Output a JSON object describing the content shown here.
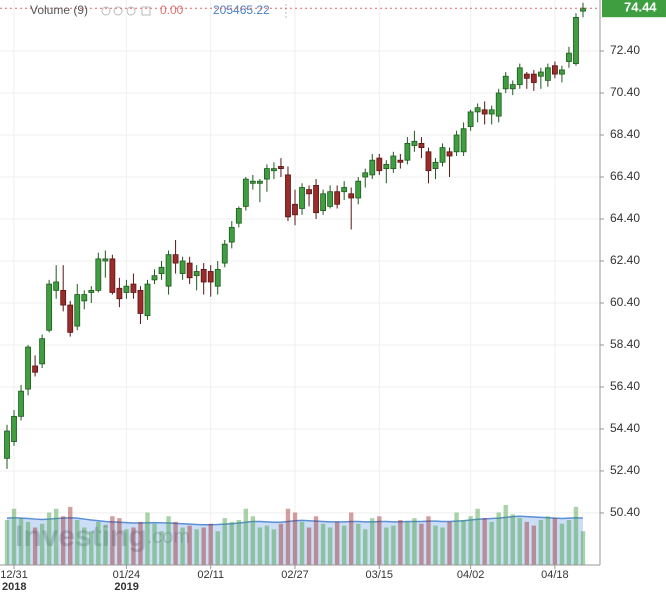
{
  "chart_data": {
    "type": "candlestick",
    "categories": [
      null,
      "12/31",
      null,
      null,
      null,
      null,
      null,
      null,
      null,
      null,
      null,
      null,
      null,
      null,
      null,
      null,
      null,
      "01/24",
      null,
      null,
      null,
      null,
      null,
      null,
      null,
      null,
      null,
      null,
      null,
      "02/11",
      null,
      null,
      null,
      null,
      null,
      null,
      null,
      null,
      null,
      null,
      null,
      "02/27",
      null,
      null,
      null,
      null,
      null,
      null,
      null,
      null,
      null,
      null,
      null,
      "03/15",
      null,
      null,
      null,
      null,
      null,
      null,
      null,
      null,
      null,
      null,
      null,
      null,
      "04/02",
      null,
      null,
      null,
      null,
      null,
      null,
      null,
      null,
      null,
      null,
      null,
      "04/18",
      null,
      null,
      null,
      null
    ],
    "category_years": [
      null,
      "2018",
      null,
      null,
      null,
      null,
      null,
      null,
      null,
      null,
      null,
      null,
      null,
      null,
      null,
      null,
      null,
      "2019",
      null,
      null,
      null,
      null,
      null,
      null,
      null,
      null,
      null,
      null,
      null,
      null,
      null,
      null,
      null,
      null,
      null,
      null,
      null,
      null,
      null,
      null,
      null,
      null,
      null,
      null,
      null,
      null,
      null,
      null,
      null,
      null,
      null,
      null,
      null,
      null,
      null,
      null,
      null,
      null,
      null,
      null,
      null,
      null,
      null,
      null,
      null,
      null,
      null,
      null,
      null,
      null,
      null,
      null,
      null,
      null,
      null,
      null,
      null,
      null,
      null,
      null,
      null,
      null,
      null
    ],
    "open": [
      53.0,
      53.8,
      55.0,
      56.3,
      57.4,
      57.5,
      59.1,
      61.0,
      61.0,
      60.3,
      59.3,
      60.5,
      60.9,
      61.0,
      62.4,
      62.5,
      61.1,
      60.9,
      61.3,
      61.0,
      59.8,
      61.5,
      61.8,
      61.2,
      62.7,
      61.8,
      62.3,
      61.7,
      62.0,
      61.9,
      61.2,
      62.3,
      63.3,
      64.2,
      65.0,
      66.1,
      66.1,
      66.3,
      66.7,
      66.9,
      66.5,
      65.1,
      64.9,
      65.8,
      66.0,
      64.8,
      65.0,
      65.7,
      65.7,
      65.6,
      65.4,
      66.4,
      66.5,
      67.3,
      66.8,
      66.8,
      67.2,
      67.2,
      67.9,
      68.0,
      67.6,
      66.8,
      67.1,
      67.6,
      67.6,
      67.6,
      68.8,
      69.5,
      69.6,
      69.4,
      69.3,
      70.6,
      70.6,
      70.8,
      71.3,
      71.3,
      71.2,
      71.0,
      71.7,
      71.3,
      71.9,
      71.8,
      74.3
    ],
    "high": [
      54.6,
      55.3,
      56.5,
      58.4,
      57.9,
      58.9,
      61.5,
      62.2,
      62.2,
      60.5,
      61.3,
      61.0,
      61.2,
      62.8,
      62.9,
      62.7,
      61.6,
      61.5,
      61.8,
      61.2,
      61.5,
      62.0,
      62.4,
      62.9,
      63.4,
      62.6,
      62.6,
      62.2,
      62.3,
      62.2,
      62.4,
      63.4,
      64.3,
      65.0,
      66.4,
      66.5,
      66.3,
      67.0,
      67.1,
      67.3,
      66.9,
      65.8,
      66.1,
      66.0,
      66.3,
      65.8,
      66.0,
      66.0,
      66.2,
      65.9,
      66.4,
      66.8,
      67.5,
      67.5,
      67.2,
      67.6,
      67.5,
      68.3,
      68.6,
      68.3,
      67.8,
      67.3,
      68.0,
      67.8,
      68.6,
      69.0,
      69.6,
      69.9,
      70.0,
      69.8,
      70.6,
      71.4,
      71.0,
      71.8,
      71.4,
      71.5,
      71.6,
      71.8,
      71.9,
      71.7,
      72.6,
      74.2,
      74.7
    ],
    "low": [
      52.5,
      53.6,
      54.8,
      56.0,
      56.9,
      57.3,
      59.0,
      60.6,
      60.0,
      58.8,
      59.1,
      60.1,
      60.4,
      60.9,
      61.6,
      60.8,
      60.2,
      60.6,
      60.6,
      59.4,
      59.6,
      61.3,
      61.5,
      60.8,
      61.8,
      61.5,
      61.3,
      61.0,
      60.8,
      60.7,
      60.8,
      62.1,
      63.0,
      64.0,
      64.8,
      65.8,
      65.2,
      65.7,
      66.3,
      66.4,
      64.3,
      64.1,
      64.6,
      65.0,
      64.4,
      64.6,
      64.9,
      64.9,
      65.3,
      63.9,
      65.1,
      65.9,
      66.3,
      66.5,
      66.1,
      66.6,
      66.8,
      67.0,
      67.6,
      67.3,
      66.1,
      66.3,
      66.9,
      66.4,
      67.4,
      67.4,
      68.6,
      69.0,
      68.9,
      68.9,
      69.0,
      70.4,
      70.3,
      70.6,
      70.6,
      70.5,
      70.6,
      70.7,
      71.1,
      70.9,
      71.6,
      71.7,
      74.0
    ],
    "close": [
      54.3,
      55.0,
      56.2,
      58.3,
      57.1,
      58.7,
      61.3,
      61.4,
      60.3,
      59.0,
      60.8,
      60.8,
      61.0,
      62.5,
      62.5,
      60.9,
      60.6,
      61.2,
      60.9,
      59.9,
      61.3,
      61.7,
      62.1,
      62.7,
      62.3,
      62.4,
      61.6,
      61.9,
      61.4,
      61.4,
      62.0,
      63.2,
      64.0,
      64.9,
      66.3,
      66.2,
      66.2,
      66.8,
      66.8,
      66.8,
      64.5,
      64.6,
      65.9,
      65.6,
      64.7,
      65.6,
      65.7,
      65.1,
      65.9,
      65.4,
      66.2,
      66.6,
      67.2,
      66.7,
      67.0,
      67.4,
      67.1,
      68.0,
      68.1,
      67.8,
      66.7,
      67.1,
      67.8,
      67.4,
      68.4,
      68.7,
      69.5,
      69.7,
      69.4,
      69.6,
      70.4,
      71.2,
      70.8,
      71.6,
      71.1,
      70.9,
      71.4,
      71.6,
      71.3,
      71.5,
      72.3,
      74.0,
      74.44
    ],
    "volume": [
      240000,
      300000,
      250000,
      230000,
      200000,
      220000,
      280000,
      300000,
      260000,
      310000,
      240000,
      200000,
      180000,
      230000,
      210000,
      260000,
      250000,
      190000,
      200000,
      230000,
      280000,
      220000,
      180000,
      260000,
      230000,
      200000,
      210000,
      190000,
      200000,
      220000,
      180000,
      250000,
      230000,
      240000,
      300000,
      260000,
      200000,
      210000,
      190000,
      220000,
      300000,
      280000,
      230000,
      200000,
      260000,
      220000,
      200000,
      230000,
      210000,
      280000,
      220000,
      190000,
      250000,
      260000,
      200000,
      210000,
      240000,
      230000,
      250000,
      220000,
      260000,
      210000,
      200000,
      230000,
      280000,
      240000,
      260000,
      300000,
      250000,
      230000,
      280000,
      320000,
      270000,
      250000,
      230000,
      210000,
      240000,
      260000,
      250000,
      220000,
      240000,
      310000,
      180000
    ],
    "volume_ma": [
      250000,
      252000,
      250000,
      248000,
      245000,
      243000,
      245000,
      248000,
      250000,
      252000,
      250000,
      245000,
      240000,
      236000,
      232000,
      230000,
      228000,
      226000,
      224000,
      224000,
      225000,
      226000,
      225000,
      224000,
      222000,
      220000,
      218000,
      216000,
      215000,
      215000,
      216000,
      218000,
      220000,
      224000,
      228000,
      232000,
      232000,
      230000,
      228000,
      228000,
      232000,
      236000,
      238000,
      236000,
      234000,
      232000,
      230000,
      230000,
      230000,
      232000,
      232000,
      230000,
      230000,
      232000,
      232000,
      230000,
      230000,
      232000,
      232000,
      232000,
      234000,
      234000,
      232000,
      232000,
      234000,
      236000,
      240000,
      244000,
      246000,
      248000,
      250000,
      254000,
      258000,
      260000,
      258000,
      256000,
      254000,
      252000,
      250000,
      248000,
      250000,
      252000,
      250000
    ],
    "ylim": [
      47.92,
      74.83
    ],
    "yticks": [
      {
        "value": 50.4,
        "label": "50.40"
      },
      {
        "value": 52.4,
        "label": "52.40"
      },
      {
        "value": 54.4,
        "label": "54.40"
      },
      {
        "value": 56.4,
        "label": "56.40"
      },
      {
        "value": 58.4,
        "label": "58.40"
      },
      {
        "value": 60.4,
        "label": "60.40"
      },
      {
        "value": 62.4,
        "label": "62.40"
      },
      {
        "value": 64.4,
        "label": "64.40"
      },
      {
        "value": 66.4,
        "label": "66.40"
      },
      {
        "value": 68.4,
        "label": "68.40"
      },
      {
        "value": 70.4,
        "label": "70.40"
      },
      {
        "value": 72.4,
        "label": "72.40"
      }
    ],
    "grid": true,
    "up_color": "#3f9e3f",
    "down_color": "#9c2b2b",
    "volume_legend": {
      "label": "Volume (9)",
      "value": {
        "value": 0,
        "label": "0.00"
      },
      "ma": 205465.22
    },
    "watermark": [
      "Investing",
      ".com"
    ]
  }
}
